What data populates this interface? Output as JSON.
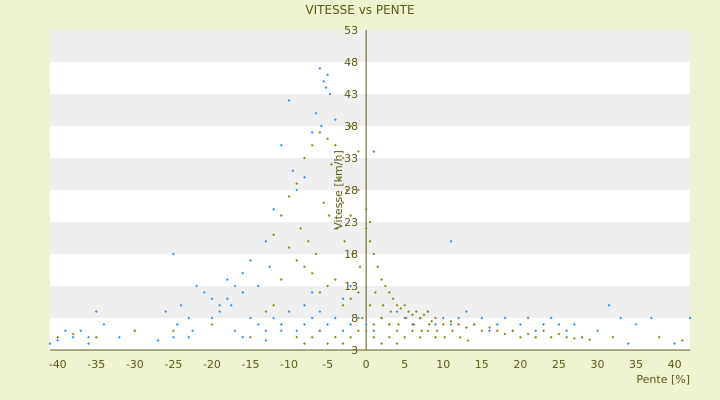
{
  "chart_data": {
    "type": "scatter",
    "title": "VITESSE vs PENTE",
    "xlabel": "Pente [%]",
    "ylabel": "Vitesse [km/h]",
    "xlim": [
      -41,
      42
    ],
    "ylim": [
      3,
      53
    ],
    "x_ticks": [
      -40,
      -35,
      -30,
      -25,
      -20,
      -15,
      -10,
      -5,
      0,
      5,
      10,
      15,
      20,
      25,
      30,
      35,
      40
    ],
    "y_ticks": [
      3,
      8,
      13,
      18,
      23,
      28,
      33,
      38,
      43,
      48,
      53
    ],
    "grid": "horizontal-bands",
    "legend": "none",
    "colors": {
      "background": "#eef3d2",
      "plot_band_light": "#ffffff",
      "plot_band_dark": "#efefef",
      "series_blue": "#3c8fe0",
      "series_olive": "#8a8a12",
      "axis": "#5c5a14",
      "text": "#5c5a14"
    },
    "series": [
      {
        "color": "#3c8fe0",
        "points": [
          [
            -6,
            47
          ],
          [
            -5.5,
            45
          ],
          [
            -5,
            46
          ],
          [
            -5.2,
            44
          ],
          [
            -4.7,
            43
          ],
          [
            -4,
            39
          ],
          [
            -6.5,
            40
          ],
          [
            -5.8,
            38
          ],
          [
            -7,
            37
          ],
          [
            -10,
            42
          ],
          [
            -11,
            35
          ],
          [
            -9.5,
            31
          ],
          [
            -8,
            30
          ],
          [
            -9,
            28
          ],
          [
            -12,
            25
          ],
          [
            -13,
            20
          ],
          [
            -12.5,
            16
          ],
          [
            -14,
            13
          ],
          [
            -15,
            17
          ],
          [
            -16,
            15
          ],
          [
            -17,
            13
          ],
          [
            -18,
            11
          ],
          [
            -17.5,
            10
          ],
          [
            -19,
            9
          ],
          [
            -20,
            11
          ],
          [
            -21,
            12
          ],
          [
            -22,
            13
          ],
          [
            -25,
            18
          ],
          [
            -24,
            10
          ],
          [
            -26,
            9
          ],
          [
            -23,
            8
          ],
          [
            -24.5,
            7
          ],
          [
            -22.5,
            6
          ],
          [
            -23,
            5
          ],
          [
            -25,
            5
          ],
          [
            -27,
            4.5
          ],
          [
            -30,
            6
          ],
          [
            -32,
            5
          ],
          [
            -35,
            9
          ],
          [
            -34,
            7
          ],
          [
            -36,
            5
          ],
          [
            -37,
            6
          ],
          [
            -36,
            4
          ],
          [
            -38,
            5
          ],
          [
            -40,
            4.5
          ],
          [
            -41,
            4
          ],
          [
            -39,
            6
          ],
          [
            -15,
            8
          ],
          [
            -14,
            7
          ],
          [
            -13,
            6
          ],
          [
            -12,
            8
          ],
          [
            -11,
            7
          ],
          [
            -10,
            9
          ],
          [
            -9,
            6
          ],
          [
            -8,
            7
          ],
          [
            -7,
            8
          ],
          [
            -6,
            6
          ],
          [
            -5,
            7
          ],
          [
            -4,
            8
          ],
          [
            -3,
            6
          ],
          [
            -2,
            7
          ],
          [
            -1,
            8
          ],
          [
            0,
            7
          ],
          [
            1,
            6
          ],
          [
            2,
            8
          ],
          [
            3,
            7
          ],
          [
            4,
            9
          ],
          [
            5,
            8
          ],
          [
            6,
            7
          ],
          [
            7,
            8
          ],
          [
            8,
            9
          ],
          [
            9,
            7
          ],
          [
            10,
            8
          ],
          [
            11,
            7
          ],
          [
            12,
            8
          ],
          [
            13,
            9
          ],
          [
            14,
            7
          ],
          [
            15,
            8
          ],
          [
            16,
            6
          ],
          [
            17,
            7
          ],
          [
            18,
            8
          ],
          [
            19,
            6
          ],
          [
            20,
            7
          ],
          [
            21,
            8
          ],
          [
            22,
            6
          ],
          [
            23,
            7
          ],
          [
            24,
            8
          ],
          [
            25,
            7
          ],
          [
            26,
            6
          ],
          [
            27,
            7
          ],
          [
            28,
            5
          ],
          [
            30,
            6
          ],
          [
            31.5,
            10
          ],
          [
            33,
            8
          ],
          [
            34,
            4
          ],
          [
            35,
            7
          ],
          [
            37,
            8
          ],
          [
            40,
            4
          ],
          [
            42,
            8
          ],
          [
            11,
            20
          ],
          [
            1,
            34
          ],
          [
            -2,
            13
          ],
          [
            -3,
            11
          ],
          [
            -16,
            12
          ],
          [
            -18,
            14
          ],
          [
            -19,
            10
          ],
          [
            -20,
            8
          ],
          [
            -17,
            6
          ],
          [
            -16,
            5
          ],
          [
            -13,
            4.5
          ],
          [
            -11,
            6
          ],
          [
            -8,
            10
          ],
          [
            -7,
            12
          ],
          [
            -6,
            9
          ]
        ]
      },
      {
        "color": "#8a8a12",
        "points": [
          [
            -6,
            37
          ],
          [
            -5,
            36
          ],
          [
            -4,
            35
          ],
          [
            -3,
            33
          ],
          [
            -2,
            38
          ],
          [
            -1,
            34
          ],
          [
            -4.5,
            32
          ],
          [
            -3.5,
            30
          ],
          [
            -2.5,
            28
          ],
          [
            -7,
            35
          ],
          [
            -8,
            33
          ],
          [
            -9,
            29
          ],
          [
            -10,
            27
          ],
          [
            -11,
            24
          ],
          [
            -12,
            21
          ],
          [
            -8.5,
            22
          ],
          [
            -7.5,
            20
          ],
          [
            -6.5,
            18
          ],
          [
            -5.5,
            26
          ],
          [
            -4.8,
            24
          ],
          [
            -3.8,
            22
          ],
          [
            -2.8,
            20
          ],
          [
            -1.8,
            18
          ],
          [
            -0.8,
            16
          ],
          [
            0,
            22
          ],
          [
            0,
            25
          ],
          [
            0.5,
            20
          ],
          [
            1,
            18
          ],
          [
            1.5,
            16
          ],
          [
            2,
            14
          ],
          [
            2.5,
            13
          ],
          [
            3,
            12
          ],
          [
            3.5,
            11
          ],
          [
            4,
            10
          ],
          [
            4.5,
            9.5
          ],
          [
            5,
            10
          ],
          [
            5.5,
            9
          ],
          [
            6,
            8.5
          ],
          [
            6.5,
            9
          ],
          [
            7,
            8
          ],
          [
            7.5,
            8.5
          ],
          [
            8,
            9
          ],
          [
            8.5,
            7.5
          ],
          [
            9,
            8
          ],
          [
            10,
            7
          ],
          [
            11,
            7.5
          ],
          [
            12,
            7
          ],
          [
            13,
            6.5
          ],
          [
            14,
            7
          ],
          [
            15,
            6
          ],
          [
            16,
            6.5
          ],
          [
            17,
            6
          ],
          [
            18,
            5.5
          ],
          [
            19,
            6
          ],
          [
            20,
            5
          ],
          [
            21,
            5.5
          ],
          [
            22,
            5
          ],
          [
            23,
            6
          ],
          [
            24,
            5
          ],
          [
            25,
            5.5
          ],
          [
            26,
            5
          ],
          [
            27,
            4.8
          ],
          [
            28,
            5
          ],
          [
            29,
            4.6
          ],
          [
            2,
            8
          ],
          [
            3,
            7
          ],
          [
            4,
            6
          ],
          [
            5,
            5
          ],
          [
            6,
            6
          ],
          [
            7,
            5
          ],
          [
            8,
            6
          ],
          [
            9,
            5
          ],
          [
            1,
            7
          ],
          [
            1,
            5
          ],
          [
            2,
            4
          ],
          [
            3,
            5
          ],
          [
            4,
            4
          ],
          [
            -1,
            6
          ],
          [
            -2,
            5
          ],
          [
            -3,
            4
          ],
          [
            -4,
            5
          ],
          [
            -5,
            4
          ],
          [
            -6,
            6
          ],
          [
            -7,
            5
          ],
          [
            -8,
            4
          ],
          [
            -9,
            5
          ],
          [
            -1,
            12
          ],
          [
            -2,
            11
          ],
          [
            -3,
            10
          ],
          [
            -4,
            14
          ],
          [
            -5,
            13
          ],
          [
            -6,
            12
          ],
          [
            -7,
            15
          ],
          [
            -8,
            16
          ],
          [
            -9,
            17
          ],
          [
            -10,
            19
          ],
          [
            -11,
            14
          ],
          [
            -12,
            10
          ],
          [
            -13,
            9
          ],
          [
            -0.5,
            8
          ],
          [
            0,
            6
          ],
          [
            0.5,
            10
          ],
          [
            1.2,
            12
          ],
          [
            2.2,
            10
          ],
          [
            3.2,
            9
          ],
          [
            4.2,
            7
          ],
          [
            5.2,
            8
          ],
          [
            6.2,
            7
          ],
          [
            7.2,
            6
          ],
          [
            8.2,
            7
          ],
          [
            9.2,
            6
          ],
          [
            10.2,
            5
          ],
          [
            11.2,
            6
          ],
          [
            12.2,
            5
          ],
          [
            13.2,
            4.5
          ],
          [
            -15,
            5
          ],
          [
            -20,
            7
          ],
          [
            -25,
            6
          ],
          [
            -30,
            6
          ],
          [
            -35,
            5
          ],
          [
            -38,
            5.5
          ],
          [
            -40,
            5
          ],
          [
            32,
            5
          ],
          [
            38,
            5
          ],
          [
            41,
            4.5
          ],
          [
            -3,
            26
          ],
          [
            -1,
            28
          ],
          [
            0.5,
            23
          ],
          [
            -2,
            24
          ]
        ]
      }
    ]
  }
}
